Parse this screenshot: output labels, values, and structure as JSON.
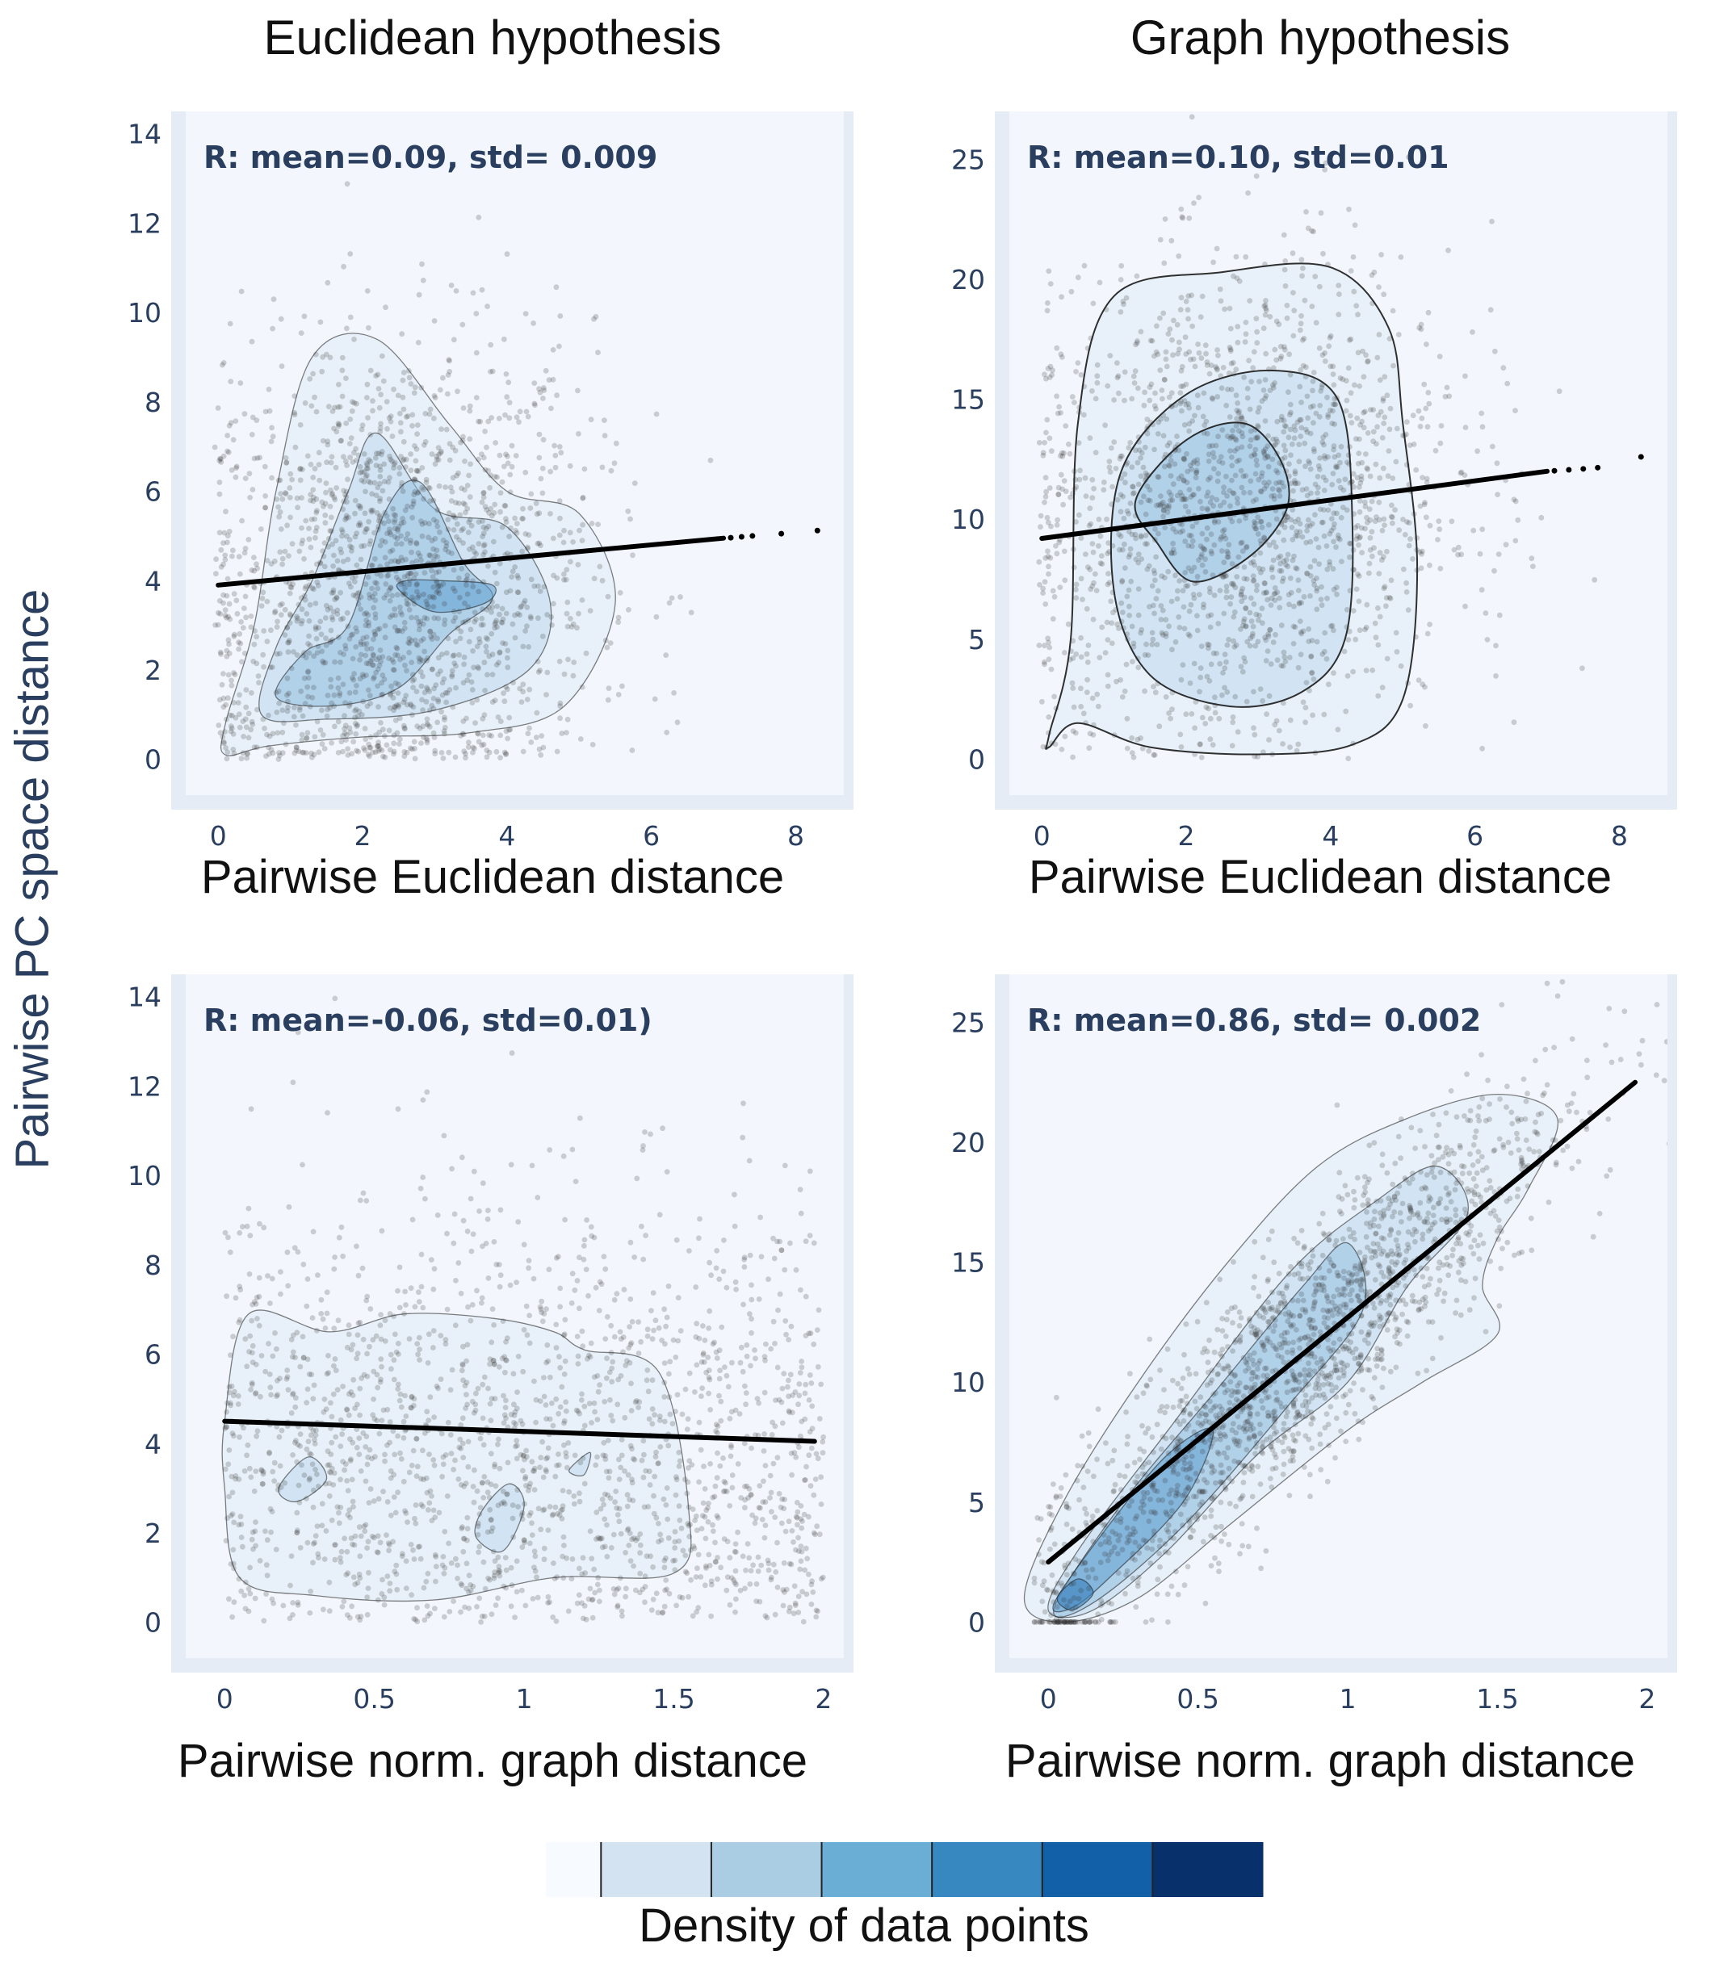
{
  "figure": {
    "column_titles": [
      "Euclidean hypothesis",
      "Graph hypothesis"
    ],
    "shared_ylabel": "Pairwise PC space distance",
    "colorbar": {
      "label": "Density of data points",
      "colors": [
        "#f7fbff",
        "#d4e3f2",
        "#aacde4",
        "#6aaed6",
        "#3787c0",
        "#1260a8",
        "#08306b"
      ]
    }
  },
  "chart_data": [
    {
      "type": "scatter",
      "panel": "top-left",
      "title": "Euclidean hypothesis",
      "xlabel": "Pairwise Euclidean distance",
      "ylabel": "Pairwise PC space distance",
      "xlim": [
        -0.45,
        8.8
      ],
      "ylim": [
        -0.8,
        14.5
      ],
      "xticks": [
        "0",
        "2",
        "4",
        "6",
        "8"
      ],
      "xtick_values": [
        0,
        2,
        4,
        6,
        8
      ],
      "yticks": [
        "0",
        "2",
        "4",
        "6",
        "8",
        "10",
        "12",
        "14"
      ],
      "ytick_values": [
        0,
        2,
        4,
        6,
        8,
        10,
        12,
        14
      ],
      "annotation": "R: mean=0.09, std= 0.009",
      "fit_line": {
        "x": [
          0,
          7.0
        ],
        "y": [
          3.9,
          4.95
        ]
      },
      "fit_tail_points": {
        "x": [
          7.1,
          7.25,
          7.4,
          7.8,
          8.3
        ],
        "y": [
          4.96,
          4.98,
          5.0,
          5.05,
          5.12
        ]
      },
      "point_cloud": {
        "center_x": 2.4,
        "center_y": 3.8,
        "spread_x": 1.4,
        "spread_y": 2.8,
        "slope": 0.15,
        "count": 1800
      },
      "density_contours": [
        {
          "level": 1,
          "points": [
            [
              0.1,
              0.1
            ],
            [
              0.7,
              0.3
            ],
            [
              2,
              0.5
            ],
            [
              3.5,
              0.6
            ],
            [
              4.8,
              1.2
            ],
            [
              5.5,
              3.5
            ],
            [
              5,
              5.5
            ],
            [
              4,
              6
            ],
            [
              3.2,
              7.5
            ],
            [
              2.2,
              9.4
            ],
            [
              1.3,
              9
            ],
            [
              0.8,
              6
            ],
            [
              0.5,
              3
            ],
            [
              0.1,
              0.8
            ]
          ]
        },
        {
          "level": 2,
          "points": [
            [
              0.6,
              1
            ],
            [
              1.5,
              0.9
            ],
            [
              3,
              1.1
            ],
            [
              4.3,
              2
            ],
            [
              4.6,
              3.5
            ],
            [
              4,
              5.2
            ],
            [
              3,
              5.6
            ],
            [
              2.2,
              7.3
            ],
            [
              1.8,
              6
            ],
            [
              1.3,
              4
            ],
            [
              0.8,
              2.5
            ]
          ]
        },
        {
          "level": 3,
          "points": [
            [
              0.8,
              1.4
            ],
            [
              1.6,
              1.2
            ],
            [
              2.5,
              1.6
            ],
            [
              3.2,
              2.8
            ],
            [
              3.8,
              3.6
            ],
            [
              3.4,
              4.4
            ],
            [
              2.8,
              6.2
            ],
            [
              2.3,
              5.5
            ],
            [
              1.8,
              3
            ],
            [
              1.2,
              2.4
            ]
          ]
        },
        {
          "level": 4,
          "points": [
            [
              2.5,
              3.8
            ],
            [
              3,
              3.3
            ],
            [
              3.7,
              3.5
            ],
            [
              3.8,
              3.9
            ],
            [
              3.1,
              4.0
            ],
            [
              2.6,
              4.0
            ]
          ]
        }
      ]
    },
    {
      "type": "scatter",
      "panel": "top-right",
      "title": "Graph hypothesis",
      "xlabel": "Pairwise Euclidean distance",
      "ylabel": "Pairwise PC space distance",
      "xlim": [
        -0.45,
        8.8
      ],
      "ylim": [
        -1.5,
        27
      ],
      "xticks": [
        "0",
        "2",
        "4",
        "6",
        "8"
      ],
      "xtick_values": [
        0,
        2,
        4,
        6,
        8
      ],
      "yticks": [
        "0",
        "5",
        "10",
        "15",
        "20",
        "25"
      ],
      "ytick_values": [
        0,
        5,
        10,
        15,
        20,
        25
      ],
      "annotation": "R: mean=0.10, std=0.01",
      "fit_line": {
        "x": [
          0,
          7.0
        ],
        "y": [
          9.2,
          12.0
        ]
      },
      "fit_tail_points": {
        "x": [
          7.1,
          7.3,
          7.5,
          7.7,
          8.3
        ],
        "y": [
          12.02,
          12.06,
          12.1,
          12.15,
          12.6
        ]
      },
      "point_cloud": {
        "center_x": 2.7,
        "center_y": 10.5,
        "spread_x": 1.5,
        "spread_y": 5.0,
        "slope": 0.4,
        "count": 1800
      },
      "density_contours": [
        {
          "level": 1,
          "points": [
            [
              0.1,
              0.5
            ],
            [
              0.5,
              1.5
            ],
            [
              1.5,
              0.5
            ],
            [
              3,
              0.2
            ],
            [
              4.3,
              0.6
            ],
            [
              5,
              2.5
            ],
            [
              5.2,
              8
            ],
            [
              5,
              14
            ],
            [
              4.8,
              18
            ],
            [
              4,
              20.5
            ],
            [
              2.5,
              20.3
            ],
            [
              1,
              19.3
            ],
            [
              0.5,
              14
            ],
            [
              0.4,
              5
            ],
            [
              0.1,
              1
            ]
          ]
        },
        {
          "level": 2,
          "points": [
            [
              1,
              7
            ],
            [
              1.5,
              3.5
            ],
            [
              2.6,
              2.2
            ],
            [
              3.6,
              2.8
            ],
            [
              4.2,
              5
            ],
            [
              4.3,
              10
            ],
            [
              4.1,
              15
            ],
            [
              3.2,
              16.2
            ],
            [
              2,
              15.2
            ],
            [
              1.1,
              12
            ]
          ]
        },
        {
          "level": 3,
          "points": [
            [
              1.3,
              10.8
            ],
            [
              2,
              13.3
            ],
            [
              2.8,
              14
            ],
            [
              3.3,
              12.5
            ],
            [
              3.4,
              10.5
            ],
            [
              2.9,
              8.5
            ],
            [
              2.1,
              7.4
            ],
            [
              1.6,
              9
            ]
          ]
        }
      ]
    },
    {
      "type": "scatter",
      "panel": "bottom-left",
      "title": "",
      "xlabel": "Pairwise norm. graph distance",
      "ylabel": "Pairwise PC space distance",
      "xlim": [
        -0.13,
        2.1
      ],
      "ylim": [
        -0.8,
        14.5
      ],
      "xticks": [
        "0",
        "0.5",
        "1",
        "1.5",
        "2"
      ],
      "xtick_values": [
        0,
        0.5,
        1,
        1.5,
        2
      ],
      "yticks": [
        "0",
        "2",
        "4",
        "6",
        "8",
        "10",
        "12",
        "14"
      ],
      "ytick_values": [
        0,
        2,
        4,
        6,
        8,
        10,
        12,
        14
      ],
      "annotation": "R: mean=-0.06, std=0.01)",
      "fit_line": {
        "x": [
          0,
          1.97
        ],
        "y": [
          4.5,
          4.05
        ]
      },
      "fit_tail_points": {
        "x": [],
        "y": []
      },
      "point_cloud": {
        "center_x": 0.85,
        "center_y": 3.8,
        "spread_x": 0.6,
        "spread_y": 2.8,
        "slope": -0.2,
        "count": 1800
      },
      "density_contours": [
        {
          "level": 1,
          "points": [
            [
              0,
              4.5
            ],
            [
              0.08,
              6.9
            ],
            [
              0.35,
              6.5
            ],
            [
              0.6,
              6.9
            ],
            [
              0.9,
              6.8
            ],
            [
              1.1,
              6.5
            ],
            [
              1.2,
              6.1
            ],
            [
              1.45,
              5.6
            ],
            [
              1.55,
              2.5
            ],
            [
              1.5,
              1.1
            ],
            [
              1.1,
              1
            ],
            [
              0.7,
              0.5
            ],
            [
              0.3,
              0.6
            ],
            [
              0.05,
              1
            ],
            [
              0,
              3
            ]
          ]
        },
        {
          "level": 2,
          "points": [
            [
              0.18,
              3.0
            ],
            [
              0.28,
              3.7
            ],
            [
              0.34,
              3.2
            ],
            [
              0.24,
              2.7
            ]
          ]
        },
        {
          "level": 2,
          "points": [
            [
              0.86,
              2.5
            ],
            [
              0.95,
              3.1
            ],
            [
              1.0,
              2.6
            ],
            [
              0.93,
              1.6
            ],
            [
              0.84,
              1.9
            ]
          ]
        },
        {
          "level": 2,
          "points": [
            [
              1.15,
              3.4
            ],
            [
              1.22,
              3.8
            ],
            [
              1.2,
              3.3
            ]
          ]
        }
      ]
    },
    {
      "type": "scatter",
      "panel": "bottom-right",
      "title": "",
      "xlabel": "Pairwise norm. graph distance",
      "ylabel": "Pairwise PC space distance",
      "xlim": [
        -0.13,
        2.1
      ],
      "ylim": [
        -1.5,
        27
      ],
      "xticks": [
        "0",
        "0.5",
        "1",
        "1.5",
        "2"
      ],
      "xtick_values": [
        0,
        0.5,
        1,
        1.5,
        2
      ],
      "yticks": [
        "0",
        "5",
        "10",
        "15",
        "20",
        "25"
      ],
      "ytick_values": [
        0,
        5,
        10,
        15,
        20,
        25
      ],
      "annotation": "R: mean=0.86, std= 0.002",
      "fit_line": {
        "x": [
          0,
          1.96
        ],
        "y": [
          2.5,
          22.5
        ]
      },
      "fit_tail_points": {
        "x": [],
        "y": []
      },
      "point_cloud": {
        "center_x": 0.8,
        "center_y": 11,
        "spread_x": 0.45,
        "spread_y": 2.5,
        "slope": 11.5,
        "count": 1800
      },
      "density_contours": [
        {
          "level": 1,
          "points": [
            [
              -0.08,
              1
            ],
            [
              0.05,
              5
            ],
            [
              0.3,
              10
            ],
            [
              0.6,
              15
            ],
            [
              0.9,
              19
            ],
            [
              1.2,
              21
            ],
            [
              1.5,
              22
            ],
            [
              1.7,
              21
            ],
            [
              1.6,
              18
            ],
            [
              1.5,
              16
            ],
            [
              1.45,
              14
            ],
            [
              1.5,
              12
            ],
            [
              1.25,
              10
            ],
            [
              1,
              8
            ],
            [
              0.6,
              4
            ],
            [
              0.3,
              1
            ],
            [
              0.05,
              0
            ]
          ]
        },
        {
          "level": 2,
          "points": [
            [
              0,
              0.5
            ],
            [
              0.1,
              3
            ],
            [
              0.4,
              8
            ],
            [
              0.8,
              14.5
            ],
            [
              1.1,
              17.6
            ],
            [
              1.3,
              19
            ],
            [
              1.4,
              17
            ],
            [
              1.2,
              14
            ],
            [
              1,
              10
            ],
            [
              0.7,
              7
            ],
            [
              0.4,
              3
            ],
            [
              0.15,
              0.5
            ]
          ]
        },
        {
          "level": 3,
          "points": [
            [
              0.02,
              0.6
            ],
            [
              0.25,
              5
            ],
            [
              0.55,
              9.5
            ],
            [
              0.85,
              14
            ],
            [
              1.0,
              15.8
            ],
            [
              1.05,
              13
            ],
            [
              0.8,
              9
            ],
            [
              0.45,
              4
            ],
            [
              0.15,
              0.8
            ]
          ]
        },
        {
          "level": 4,
          "points": [
            [
              0.02,
              0.8
            ],
            [
              0.2,
              4
            ],
            [
              0.4,
              7
            ],
            [
              0.55,
              8
            ],
            [
              0.45,
              5
            ],
            [
              0.2,
              1.8
            ],
            [
              0.08,
              0.6
            ]
          ]
        },
        {
          "level": 5,
          "points": [
            [
              0.03,
              1
            ],
            [
              0.1,
              1.8
            ],
            [
              0.15,
              1.2
            ],
            [
              0.08,
              0.5
            ]
          ]
        }
      ]
    }
  ]
}
